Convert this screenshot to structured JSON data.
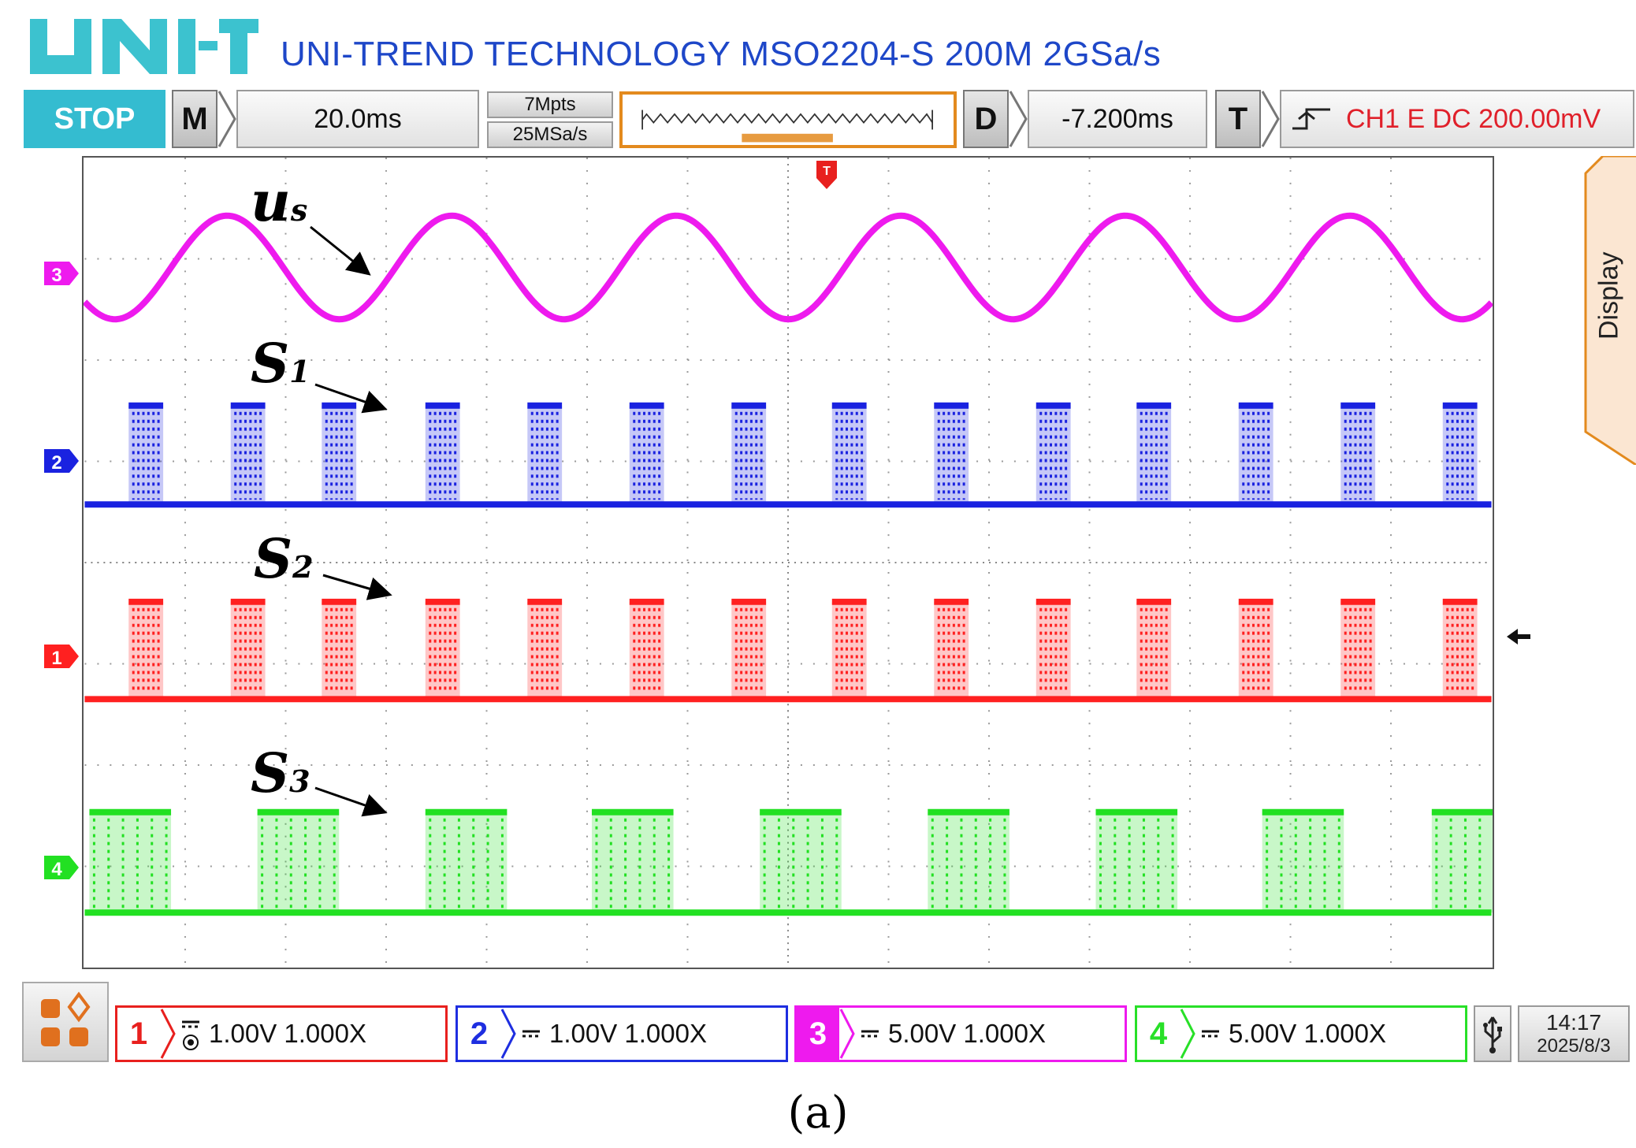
{
  "header": {
    "logo": "UNI-T",
    "brand": "UNI-TREND TECHNOLOGY MSO2204-S 200M 2GSa/s"
  },
  "topbar": {
    "run_state": "STOP",
    "timebase_key": "M",
    "timebase_value": "20.0ms",
    "memory_depth": "7Mpts",
    "sample_rate": "25MSa/s",
    "delay_key": "D",
    "delay_value": "-7.200ms",
    "trigger_key": "T",
    "trigger_value": "CH1 E DC 200.00mV"
  },
  "side_panel": {
    "display_label": "Display"
  },
  "screen": {
    "trigger_marker": "T",
    "channel_markers": [
      "3",
      "2",
      "1",
      "4"
    ],
    "labels": {
      "us_main": "u",
      "us_sub": "s",
      "s1_main": "S",
      "s1_sub": "1",
      "s2_main": "S",
      "s2_sub": "2",
      "s3_main": "S",
      "s3_sub": "3"
    }
  },
  "channels": [
    {
      "num": "1",
      "text": "1.00V 1.000X",
      "color": "#e8201e"
    },
    {
      "num": "2",
      "text": "1.00V 1.000X",
      "color": "#1e2ee0"
    },
    {
      "num": "3",
      "text": "5.00V 1.000X",
      "color": "#ee1aee"
    },
    {
      "num": "4",
      "text": "5.00V 1.000X",
      "color": "#28e028"
    }
  ],
  "status": {
    "time": "14:17",
    "date": "2025/8/3"
  },
  "caption": "(a)",
  "colors": {
    "ch1": "#ff2020",
    "ch2": "#1a22e0",
    "ch3": "#ee1aee",
    "ch4": "#22e022",
    "accent": "#34bcd0",
    "brand": "#1e47c8"
  }
}
